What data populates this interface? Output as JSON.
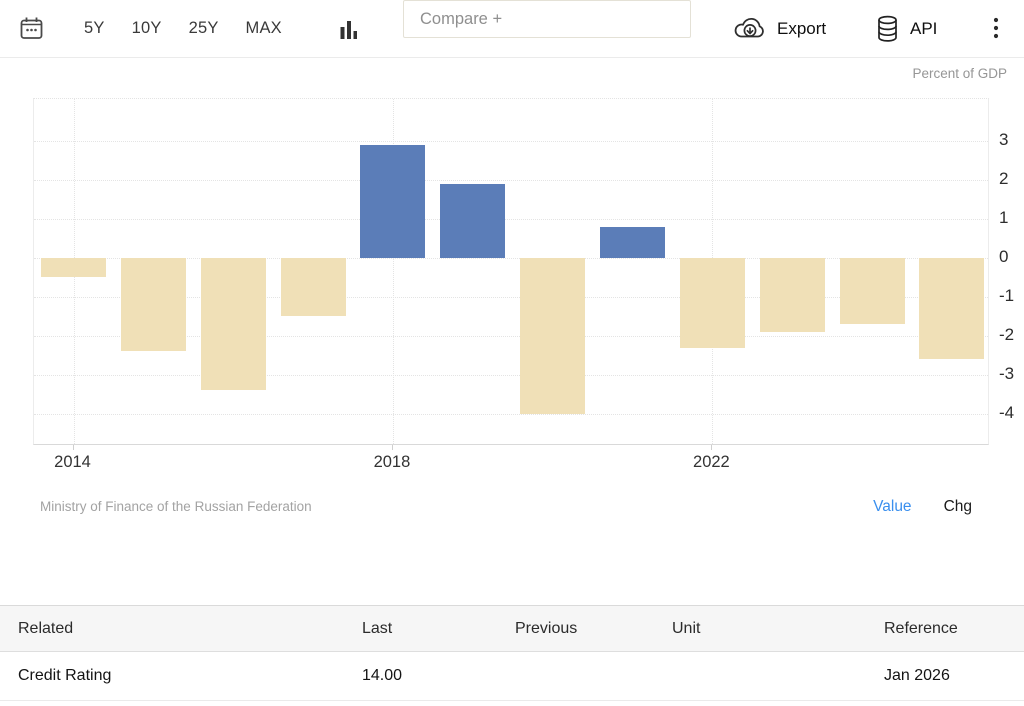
{
  "toolbar": {
    "range_buttons": [
      "5Y",
      "10Y",
      "25Y",
      "MAX"
    ],
    "compare_placeholder": "Compare +",
    "export_label": "Export",
    "api_label": "API"
  },
  "chart": {
    "unit_label": "Percent of GDP",
    "source": "Ministry of Finance of the Russian Federation",
    "value_label": "Value",
    "chg_label": "Chg",
    "value_link_color": "#3a8fee"
  },
  "chart_data": {
    "type": "bar",
    "title": "",
    "xlabel": "",
    "ylabel": "Percent of GDP",
    "categories": [
      "2014",
      "2015",
      "2016",
      "2017",
      "2018",
      "2019",
      "2020",
      "2021",
      "2022",
      "2023",
      "2024",
      "2025"
    ],
    "values": [
      -0.5,
      -2.4,
      -3.4,
      -1.5,
      2.9,
      1.9,
      -4.0,
      0.8,
      -2.3,
      -1.9,
      -1.7,
      -2.6
    ],
    "ylim": [
      -4.8,
      4.1
    ],
    "y_ticks": [
      3,
      2,
      1,
      0,
      -1,
      -2,
      -3,
      -4
    ],
    "x_tick_labels": [
      "2014",
      "2018",
      "2022"
    ],
    "x_tick_indices": [
      0,
      4,
      8
    ],
    "grid": true,
    "legend": false,
    "colors": {
      "positive_bar": "#5b7db8",
      "negative_bar": "#f0e0b7"
    },
    "source": "Ministry of Finance of the Russian Federation"
  },
  "table": {
    "headers": [
      "Related",
      "Last",
      "Previous",
      "Unit",
      "Reference"
    ],
    "rows": [
      {
        "related": "Credit Rating",
        "last": "14.00",
        "previous": "",
        "unit": "",
        "reference": "Jan 2026"
      }
    ]
  }
}
